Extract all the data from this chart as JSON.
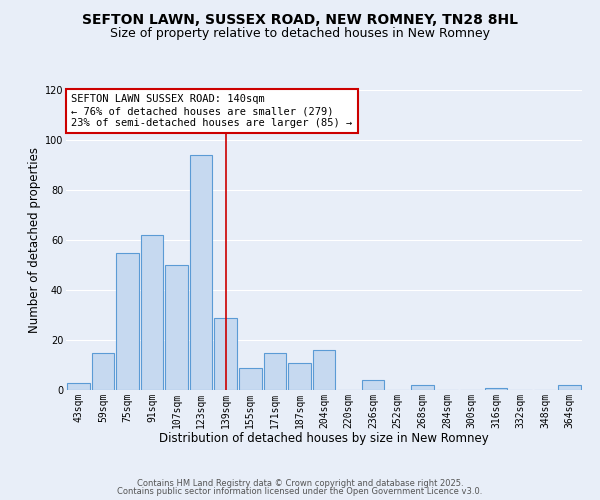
{
  "title": "SEFTON LAWN, SUSSEX ROAD, NEW ROMNEY, TN28 8HL",
  "subtitle": "Size of property relative to detached houses in New Romney",
  "xlabel": "Distribution of detached houses by size in New Romney",
  "ylabel": "Number of detached properties",
  "bin_labels": [
    "43sqm",
    "59sqm",
    "75sqm",
    "91sqm",
    "107sqm",
    "123sqm",
    "139sqm",
    "155sqm",
    "171sqm",
    "187sqm",
    "204sqm",
    "220sqm",
    "236sqm",
    "252sqm",
    "268sqm",
    "284sqm",
    "300sqm",
    "316sqm",
    "332sqm",
    "348sqm",
    "364sqm"
  ],
  "bar_heights": [
    3,
    15,
    55,
    62,
    50,
    94,
    29,
    9,
    15,
    11,
    16,
    0,
    4,
    0,
    2,
    0,
    0,
    1,
    0,
    0,
    2
  ],
  "bar_color": "#c6d9f0",
  "bar_edge_color": "#5b9bd5",
  "highlight_bar_index": 6,
  "vline_color": "#CC0000",
  "annotation_text": "SEFTON LAWN SUSSEX ROAD: 140sqm\n← 76% of detached houses are smaller (279)\n23% of semi-detached houses are larger (85) →",
  "annotation_box_color": "#ffffff",
  "annotation_box_edge": "#CC0000",
  "ylim": [
    0,
    120
  ],
  "yticks": [
    0,
    20,
    40,
    60,
    80,
    100,
    120
  ],
  "footer1": "Contains HM Land Registry data © Crown copyright and database right 2025.",
  "footer2": "Contains public sector information licensed under the Open Government Licence v3.0.",
  "background_color": "#e8eef8",
  "grid_color": "#ffffff",
  "title_fontsize": 10,
  "subtitle_fontsize": 9,
  "axis_label_fontsize": 8.5,
  "tick_fontsize": 7,
  "annotation_fontsize": 7.5,
  "footer_fontsize": 6
}
